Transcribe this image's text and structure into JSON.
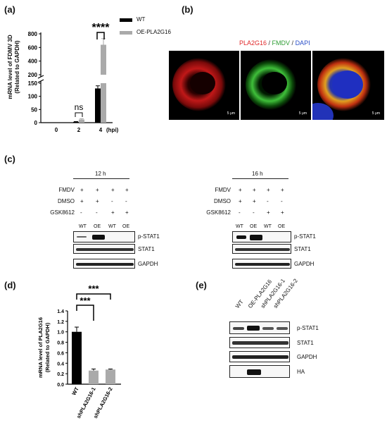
{
  "panels": {
    "a": "(a)",
    "b": "(b)",
    "c": "(c)",
    "d": "(d)",
    "e": "(e)"
  },
  "panel_a": {
    "ylabel_line1": "mRNA level of FDMV 3D",
    "ylabel_line2": "(Related to GAPDH)",
    "yticks_upper": [
      "800",
      "600",
      "400",
      "200"
    ],
    "yticks_lower": [
      "150",
      "100",
      "50",
      "0"
    ],
    "xticks": [
      "0",
      "2",
      "4"
    ],
    "xunit": "(hpi)",
    "sig_ns": "ns",
    "sig_main": "****",
    "legend": [
      "WT",
      "OE-PLA2G16"
    ],
    "colors": {
      "wt": "#000000",
      "oe": "#aaaaaa"
    }
  },
  "panel_b": {
    "title_parts": [
      "PLA2G16",
      " / ",
      "FMDV",
      " / ",
      "DAPI"
    ],
    "title_colors": [
      "#e0282a",
      "#333333",
      "#2e9d33",
      "#333333",
      "#2a4fc9"
    ],
    "scale_bar": "5 μm"
  },
  "panel_c": {
    "left": {
      "time": "12 h",
      "rows": [
        {
          "label": "FMDV",
          "marks": [
            "+",
            "+",
            "+",
            "+"
          ]
        },
        {
          "label": "DMSO",
          "marks": [
            "+",
            "+",
            "-",
            "-"
          ]
        },
        {
          "label": "GSK8612",
          "marks": [
            "-",
            "-",
            "+",
            "+"
          ]
        }
      ],
      "lanes": [
        "WT",
        "OE",
        "WT",
        "OE"
      ],
      "blots": [
        "p-STAT1",
        "STAT1",
        "GAPDH"
      ]
    },
    "right": {
      "time": "16 h",
      "rows": [
        {
          "label": "FMDV",
          "marks": [
            "+",
            "+",
            "+",
            "+"
          ]
        },
        {
          "label": "DMSO",
          "marks": [
            "+",
            "+",
            "-",
            "-"
          ]
        },
        {
          "label": "GSK8612",
          "marks": [
            "-",
            "-",
            "+",
            "+"
          ]
        }
      ],
      "lanes": [
        "WT",
        "OE",
        "WT",
        "OE"
      ],
      "blots": [
        "p-STAT1",
        "STAT1",
        "GAPDH"
      ]
    }
  },
  "panel_e": {
    "lanes": [
      "WT",
      "OE-PLA2G16",
      "shPLA2G16-1",
      "shPLA2G16-2"
    ],
    "blots": [
      "p-STAT1",
      "STAT1",
      "GAPDH",
      "HA"
    ]
  },
  "chart_data": [
    {
      "type": "bar",
      "panel": "a",
      "categories": [
        "0",
        "2",
        "4"
      ],
      "series": [
        {
          "name": "WT",
          "values": [
            0,
            3,
            130
          ],
          "errors": [
            0,
            1,
            10
          ]
        },
        {
          "name": "OE-PLA2G16",
          "values": [
            0,
            12,
            640
          ],
          "errors": [
            0,
            3,
            90
          ]
        }
      ],
      "xlabel": "(hpi)",
      "ylabel": "mRNA level of FDMV 3D (Related to GAPDH)",
      "ylim": [
        0,
        800
      ],
      "axis_break": [
        150,
        200
      ],
      "annotations": [
        {
          "between": "2",
          "text": "ns"
        },
        {
          "between": "4",
          "text": "****"
        }
      ]
    },
    {
      "type": "bar",
      "panel": "d",
      "categories": [
        "WT",
        "shPLA2G16-1",
        "shPLA2G16-2"
      ],
      "values": [
        1.0,
        0.26,
        0.28
      ],
      "errors": [
        0.09,
        0.03,
        0.01
      ],
      "colors": [
        "#000000",
        "#aaaaaa",
        "#aaaaaa"
      ],
      "ylabel": "mRNA level of PLA2G16 (Related to GAPDH)",
      "yticks": [
        "0.0",
        "0.2",
        "0.4",
        "0.6",
        "0.8",
        "1.0",
        "1.2",
        "1.4"
      ],
      "ylim": [
        0,
        1.4
      ],
      "annotations": [
        {
          "between": [
            "WT",
            "shPLA2G16-1"
          ],
          "text": "***"
        },
        {
          "between": [
            "WT",
            "shPLA2G16-2"
          ],
          "text": "***"
        }
      ]
    }
  ]
}
